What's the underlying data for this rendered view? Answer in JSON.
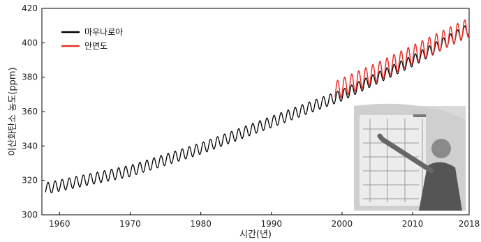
{
  "chart_data": {
    "type": "line",
    "title": "",
    "xlabel": "시간(년)",
    "ylabel": "이산화탄소 농도(ppm)",
    "xlim": [
      1957.5,
      2018
    ],
    "ylim": [
      300,
      420
    ],
    "xticks": [
      1960,
      1970,
      1980,
      1990,
      2000,
      2010,
      2018
    ],
    "yticks": [
      300,
      320,
      340,
      360,
      380,
      400,
      420
    ],
    "grid": false,
    "legend_position": "top-left",
    "series": [
      {
        "name": "마우나로아",
        "color": "#000000",
        "x_range": [
          1958,
          2018
        ],
        "trend_points": [
          [
            1958,
            315.3
          ],
          [
            1970,
            325.5
          ],
          [
            1980,
            338.5
          ],
          [
            1990,
            354
          ],
          [
            2000,
            369.5
          ],
          [
            2010,
            389.5
          ],
          [
            2018,
            408
          ]
        ],
        "seasonal_amplitude_ppm": 6.5
      },
      {
        "name": "안면도",
        "color": "#e8312a",
        "x_range": [
          1999,
          2018
        ],
        "trend_points": [
          [
            1999,
            372
          ],
          [
            2005,
            383
          ],
          [
            2010,
            393
          ],
          [
            2018,
            409
          ]
        ],
        "seasonal_amplitude_ppm": 11
      }
    ],
    "inset_photo": "scientist-pointing-at-chart-photo"
  }
}
